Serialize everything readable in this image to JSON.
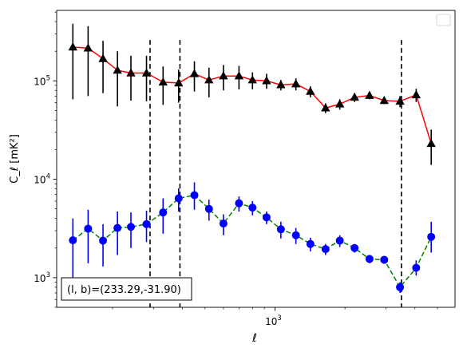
{
  "chart_data": {
    "type": "line",
    "xscale": "log",
    "yscale": "log",
    "xlim": [
      115,
      5950
    ],
    "ylim": [
      500,
      520000
    ],
    "xlabel": "ℓ",
    "ylabel": "C_ℓ  [mK²]",
    "legend": "top-right, empty",
    "x_ticks": [
      {
        "value": 1000,
        "base": "10",
        "exp": "3"
      }
    ],
    "y_ticks": [
      {
        "value": 1000,
        "base": "10",
        "exp": "3"
      },
      {
        "value": 10000,
        "base": "10",
        "exp": "4"
      },
      {
        "value": 100000,
        "base": "10",
        "exp": "5"
      }
    ],
    "vlines": [
      {
        "x": 290,
        "y_top": 260000,
        "color": "#000000",
        "style": "dashed"
      },
      {
        "x": 390,
        "y_top": 260000,
        "color": "#000000",
        "style": "dashed"
      },
      {
        "x": 3500,
        "y_top": 260000,
        "color": "#000000",
        "style": "dashed"
      }
    ],
    "annotation": "(l, b)=(233.29,-31.90)",
    "series": [
      {
        "marker": "triangle",
        "line_color": "#ff0000",
        "line_style": "solid",
        "marker_color": "#000000",
        "err_color": "#000000",
        "points": [
          {
            "x": 135,
            "y": 220000,
            "lo": 65000,
            "hi": 380000
          },
          {
            "x": 157,
            "y": 215000,
            "lo": 70000,
            "hi": 360000
          },
          {
            "x": 182,
            "y": 168000,
            "lo": 75000,
            "hi": 255000
          },
          {
            "x": 210,
            "y": 128000,
            "lo": 55000,
            "hi": 200000
          },
          {
            "x": 240,
            "y": 120000,
            "lo": 63000,
            "hi": 180000
          },
          {
            "x": 280,
            "y": 120000,
            "lo": 62000,
            "hi": 180000
          },
          {
            "x": 330,
            "y": 97000,
            "lo": 57000,
            "hi": 140000
          },
          {
            "x": 385,
            "y": 95000,
            "lo": 60000,
            "hi": 130000
          },
          {
            "x": 450,
            "y": 118000,
            "lo": 78000,
            "hi": 158000
          },
          {
            "x": 520,
            "y": 102000,
            "lo": 68000,
            "hi": 136000
          },
          {
            "x": 600,
            "y": 112000,
            "lo": 80000,
            "hi": 145000
          },
          {
            "x": 700,
            "y": 112000,
            "lo": 82000,
            "hi": 142000
          },
          {
            "x": 800,
            "y": 102000,
            "lo": 82000,
            "hi": 122000
          },
          {
            "x": 920,
            "y": 100000,
            "lo": 83000,
            "hi": 118000
          },
          {
            "x": 1060,
            "y": 91000,
            "lo": 80000,
            "hi": 102000
          },
          {
            "x": 1230,
            "y": 93000,
            "lo": 80000,
            "hi": 106000
          },
          {
            "x": 1420,
            "y": 78000,
            "lo": 68000,
            "hi": 88000
          },
          {
            "x": 1650,
            "y": 53000,
            "lo": 47000,
            "hi": 59000
          },
          {
            "x": 1900,
            "y": 58000,
            "lo": 51000,
            "hi": 65000
          },
          {
            "x": 2200,
            "y": 68000,
            "lo": 61000,
            "hi": 75000
          },
          {
            "x": 2550,
            "y": 71000,
            "lo": 65000,
            "hi": 77000
          },
          {
            "x": 2950,
            "y": 63000,
            "lo": 58000,
            "hi": 68000
          },
          {
            "x": 3450,
            "y": 62000,
            "lo": 54000,
            "hi": 70000
          },
          {
            "x": 4050,
            "y": 72000,
            "lo": 61000,
            "hi": 83000
          },
          {
            "x": 4700,
            "y": 23000,
            "lo": 14000,
            "hi": 32000
          }
        ]
      },
      {
        "marker": "circle",
        "line_color": "#008000",
        "line_style": "dashed",
        "marker_color": "#0000ff",
        "err_color": "#0000ff",
        "points": [
          {
            "x": 135,
            "y": 2400,
            "lo": 1000,
            "hi": 4000
          },
          {
            "x": 157,
            "y": 3150,
            "lo": 1400,
            "hi": 4900
          },
          {
            "x": 182,
            "y": 2380,
            "lo": 1300,
            "hi": 3500
          },
          {
            "x": 210,
            "y": 3200,
            "lo": 1700,
            "hi": 4700
          },
          {
            "x": 240,
            "y": 3280,
            "lo": 2000,
            "hi": 4600
          },
          {
            "x": 280,
            "y": 3500,
            "lo": 2300,
            "hi": 4800
          },
          {
            "x": 330,
            "y": 4600,
            "lo": 2800,
            "hi": 6400
          },
          {
            "x": 385,
            "y": 6400,
            "lo": 4700,
            "hi": 8100
          },
          {
            "x": 450,
            "y": 6900,
            "lo": 4900,
            "hi": 9300
          },
          {
            "x": 520,
            "y": 5000,
            "lo": 3800,
            "hi": 6200
          },
          {
            "x": 600,
            "y": 3550,
            "lo": 2700,
            "hi": 4400
          },
          {
            "x": 700,
            "y": 5700,
            "lo": 4700,
            "hi": 6700
          },
          {
            "x": 800,
            "y": 5150,
            "lo": 4300,
            "hi": 6000
          },
          {
            "x": 920,
            "y": 4100,
            "lo": 3500,
            "hi": 4700
          },
          {
            "x": 1060,
            "y": 3100,
            "lo": 2500,
            "hi": 3700
          },
          {
            "x": 1230,
            "y": 2700,
            "lo": 2200,
            "hi": 3200
          },
          {
            "x": 1420,
            "y": 2200,
            "lo": 1850,
            "hi": 2550
          },
          {
            "x": 1650,
            "y": 1950,
            "lo": 1700,
            "hi": 2200
          },
          {
            "x": 1900,
            "y": 2380,
            "lo": 2050,
            "hi": 2700
          },
          {
            "x": 2200,
            "y": 2000,
            "lo": 1800,
            "hi": 2200
          },
          {
            "x": 2550,
            "y": 1550,
            "lo": 1400,
            "hi": 1700
          },
          {
            "x": 2950,
            "y": 1520,
            "lo": 1380,
            "hi": 1660
          },
          {
            "x": 3450,
            "y": 800,
            "lo": 700,
            "hi": 900
          },
          {
            "x": 4050,
            "y": 1260,
            "lo": 1050,
            "hi": 1500
          },
          {
            "x": 4700,
            "y": 2600,
            "lo": 1800,
            "hi": 3700
          }
        ]
      }
    ]
  }
}
